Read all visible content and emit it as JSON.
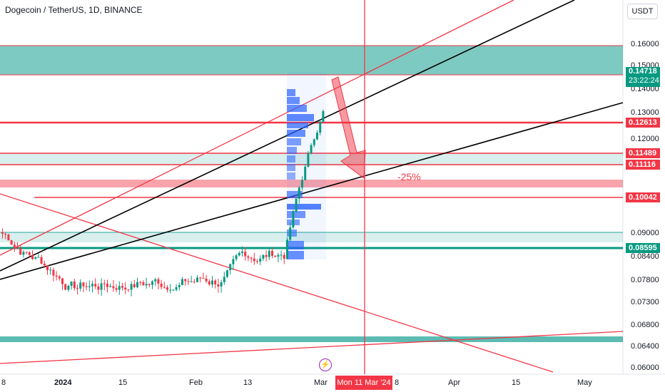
{
  "header": {
    "title": "Dogecoin / TetherUS, 1D, BINANCE",
    "currency": "USDT"
  },
  "price_axis": {
    "ticks": [
      "0.16000",
      "0.15000",
      "0.14000",
      "0.13000",
      "0.12000",
      "0.09000",
      "0.08400",
      "0.07800",
      "0.07300",
      "0.06800",
      "0.06400",
      "0.06000"
    ]
  },
  "price_tags": [
    {
      "label": "0.12613",
      "color": "#f23645"
    },
    {
      "label": "0.11489",
      "color": "#f23645"
    },
    {
      "label": "0.11116",
      "color": "#f23645"
    },
    {
      "label": "0.10042",
      "color": "#f23645"
    },
    {
      "label": "0.08595",
      "color": "#089981"
    }
  ],
  "current_price": {
    "value": "0.14718",
    "countdown": "23:22:24",
    "color": "#089981"
  },
  "time_axis": {
    "labels": [
      "8",
      "2024",
      "15",
      "Feb",
      "13",
      "Mar",
      "8",
      "Apr",
      "15",
      "May"
    ],
    "highlight": "Mon 11 Mar '24"
  },
  "annotation": {
    "percent": "-25%"
  },
  "event_icon": "lightning-icon",
  "colors": {
    "up": "#089981",
    "down": "#f23645",
    "zone_green": "#26a69a",
    "zone_red": "#f23645",
    "volume_profile": "#2962ff"
  }
}
